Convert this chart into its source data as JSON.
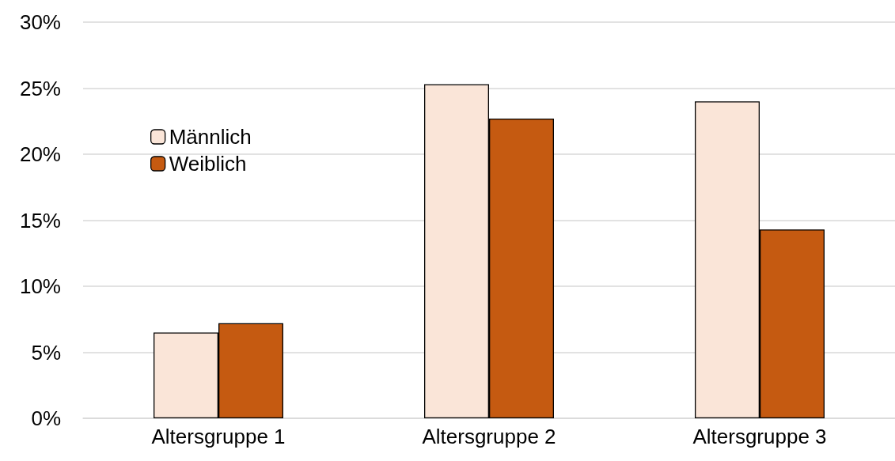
{
  "chart_data": {
    "type": "bar",
    "categories": [
      "Altersgruppe 1",
      "Altersgruppe 2",
      "Altersgruppe 3"
    ],
    "series": [
      {
        "name": "Männlich",
        "color": "#fae5d8",
        "values": [
          6.5,
          25.3,
          24.0
        ]
      },
      {
        "name": "Weiblich",
        "color": "#c55a11",
        "values": [
          7.2,
          22.7,
          14.3
        ]
      }
    ],
    "ylim": [
      0,
      30
    ],
    "yticks": [
      {
        "value": 0,
        "label": "0%"
      },
      {
        "value": 5,
        "label": "5%"
      },
      {
        "value": 10,
        "label": "10%"
      },
      {
        "value": 15,
        "label": "15%"
      },
      {
        "value": 20,
        "label": "20%"
      },
      {
        "value": 25,
        "label": "25%"
      },
      {
        "value": 30,
        "label": "30%"
      }
    ],
    "grid": "y",
    "legend": "top left"
  }
}
